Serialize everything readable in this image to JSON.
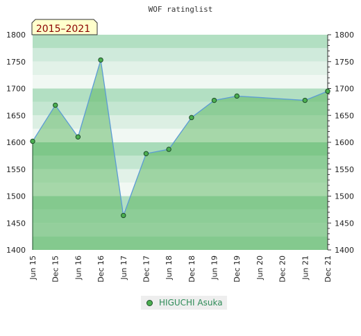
{
  "chart_data": {
    "type": "area",
    "title": "WOF ratinglist",
    "badge": "2015–2021",
    "categories": [
      "Jun 15",
      "Dec 15",
      "Jun 16",
      "Dec 16",
      "Jun 17",
      "Dec 17",
      "Jun 18",
      "Dec 18",
      "Jun 19",
      "Dec 19",
      "Jun 20",
      "Dec 20",
      "Jun 21",
      "Dec 21"
    ],
    "series": [
      {
        "name": "HIGUCHI Asuka",
        "points": [
          {
            "x": "Jun 15",
            "y": 1602
          },
          {
            "x": "Dec 15",
            "y": 1669
          },
          {
            "x": "Jun 16",
            "y": 1610
          },
          {
            "x": "Dec 16",
            "y": 1753
          },
          {
            "x": "Jun 17",
            "y": 1464
          },
          {
            "x": "Dec 17",
            "y": 1579
          },
          {
            "x": "Jun 18",
            "y": 1587
          },
          {
            "x": "Dec 18",
            "y": 1646
          },
          {
            "x": "Jun 19",
            "y": 1678
          },
          {
            "x": "Dec 19",
            "y": 1686
          },
          {
            "x": "Jun 21",
            "y": 1678
          },
          {
            "x": "Dec 21",
            "y": 1695
          }
        ]
      }
    ],
    "yticks": [
      1400,
      1450,
      1500,
      1550,
      1600,
      1650,
      1700,
      1750,
      1800
    ],
    "ylim": [
      1400,
      1800
    ],
    "bands": [
      {
        "from": 1775,
        "to": 1800,
        "color": "#b2dfc2"
      },
      {
        "from": 1750,
        "to": 1775,
        "color": "#cfeadb"
      },
      {
        "from": 1725,
        "to": 1750,
        "color": "#e2f2e8"
      },
      {
        "from": 1700,
        "to": 1725,
        "color": "#f1f8f3"
      },
      {
        "from": 1675,
        "to": 1700,
        "color": "#b2dfc2"
      },
      {
        "from": 1650,
        "to": 1675,
        "color": "#c4e6d1"
      },
      {
        "from": 1625,
        "to": 1650,
        "color": "#dcefe3"
      },
      {
        "from": 1600,
        "to": 1625,
        "color": "#f1f8f3"
      },
      {
        "from": 1575,
        "to": 1600,
        "color": "#a8dbb9"
      },
      {
        "from": 1550,
        "to": 1575,
        "color": "#c4e6d1"
      },
      {
        "from": 1525,
        "to": 1550,
        "color": "#e2f2e8"
      },
      {
        "from": 1500,
        "to": 1525,
        "color": "#f1f8f3"
      },
      {
        "from": 1475,
        "to": 1500,
        "color": "#b2dfc2"
      },
      {
        "from": 1450,
        "to": 1475,
        "color": "#c4e6d1"
      },
      {
        "from": 1425,
        "to": 1450,
        "color": "#cfeadb"
      },
      {
        "from": 1400,
        "to": 1425,
        "color": "#b2dfc2"
      }
    ],
    "colors": {
      "line": "#5b9bd5",
      "fill": "#4caf50",
      "marker": "#4caf50",
      "marker_stroke": "#1d4d2a",
      "legend_text": "#2e8b57",
      "badge_bg": "#ffffcc"
    },
    "legend_position": "bottom-center",
    "grid": false
  }
}
